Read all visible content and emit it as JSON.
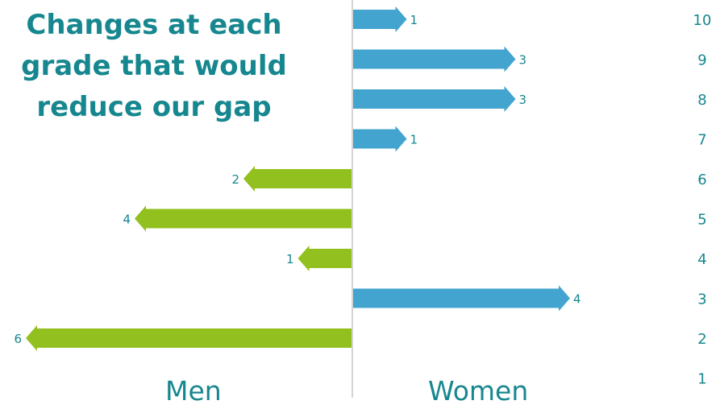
{
  "title_lines": [
    "Changes at each",
    "grade that would",
    "reduce our gap"
  ],
  "labels": {
    "left": "Men",
    "right": "Women"
  },
  "colors": {
    "women": "#42a4cf",
    "men": "#92c01f",
    "text": "#17878f",
    "axis": "#d4d4d4"
  },
  "chart_data": {
    "type": "bar",
    "orientation": "horizontal-diverging",
    "title": "Changes at each grade that would reduce our gap",
    "categories": [
      "10",
      "9",
      "8",
      "7",
      "6",
      "5",
      "4",
      "3",
      "2",
      "1"
    ],
    "series": [
      {
        "name": "Women",
        "values": [
          1,
          3,
          3,
          1,
          0,
          0,
          0,
          4,
          0,
          0
        ]
      },
      {
        "name": "Men",
        "values": [
          0,
          0,
          0,
          0,
          2,
          4,
          1,
          0,
          6,
          0
        ]
      }
    ],
    "xlim": [
      -6,
      4
    ],
    "grid": false,
    "legend": "none"
  }
}
